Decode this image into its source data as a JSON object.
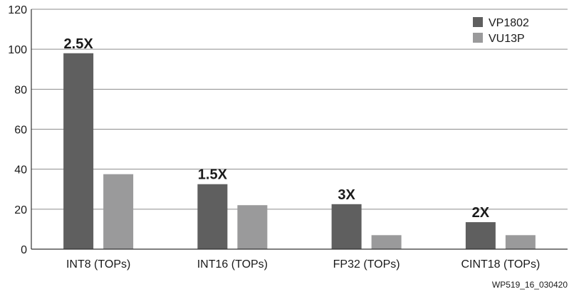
{
  "chart_data": {
    "type": "bar",
    "categories": [
      "INT8 (TOPs)",
      "INT16 (TOPs)",
      "FP32 (TOPs)",
      "CINT18 (TOPs)"
    ],
    "series": [
      {
        "name": "VP1802",
        "values": [
          98,
          32.5,
          22.5,
          13.5
        ],
        "color": "#5f5f5f"
      },
      {
        "name": "VU13P",
        "values": [
          37.5,
          22,
          7,
          7
        ],
        "color": "#9a9a9b"
      }
    ],
    "annotations": [
      "2.5X",
      "1.5X",
      "3X",
      "2X"
    ],
    "yticks": [
      0,
      20,
      40,
      60,
      80,
      100,
      120
    ],
    "ylim": [
      0,
      120
    ],
    "grid": true,
    "legend_position": "top-right",
    "title": "",
    "xlabel": "",
    "ylabel": ""
  },
  "footnote": "WP519_16_030420"
}
